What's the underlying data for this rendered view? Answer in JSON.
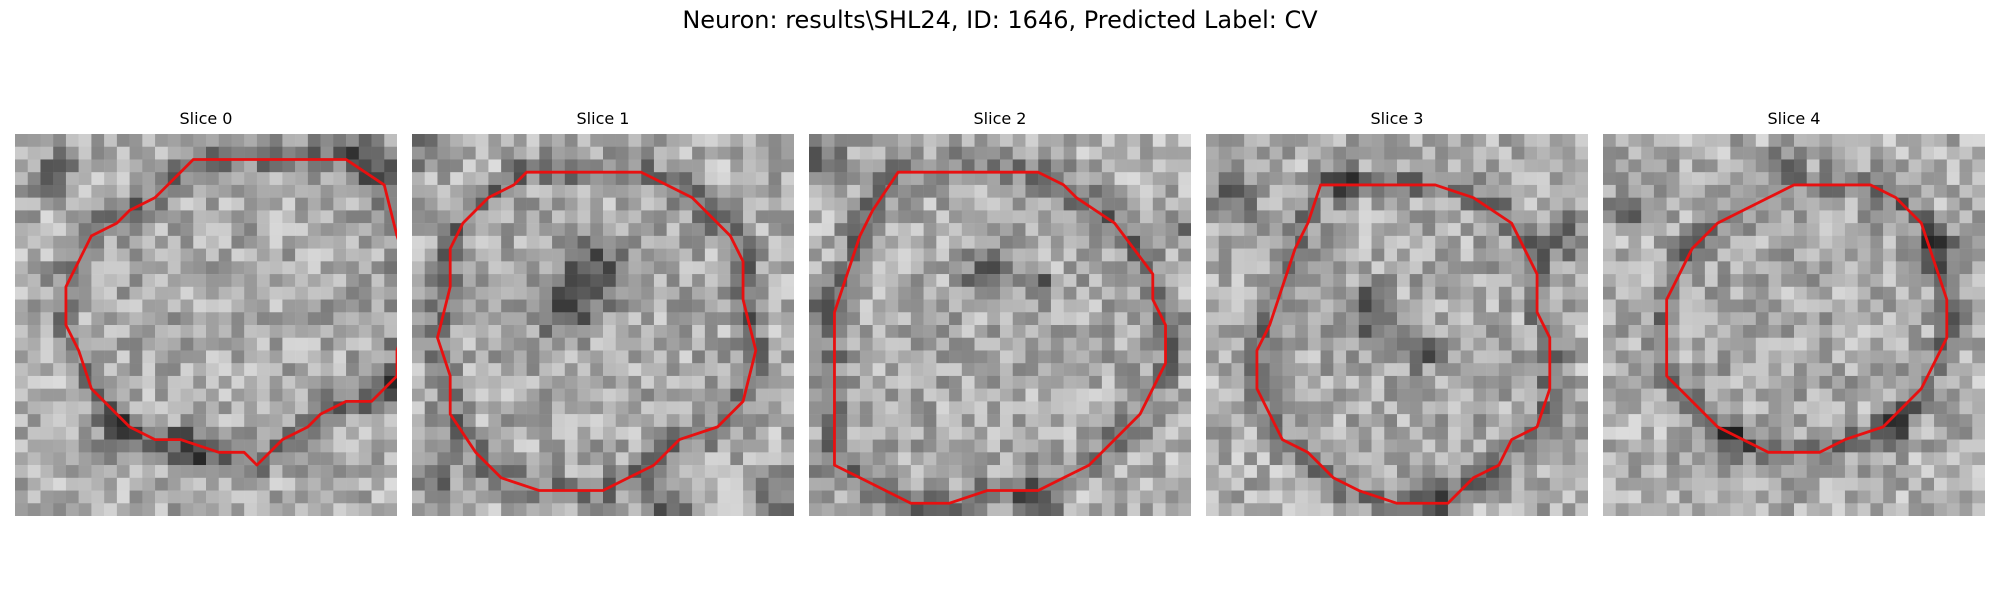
{
  "figure": {
    "title": "Neuron: results\\SHL24, ID: 1646, Predicted Label: CV",
    "contour_color": "#e81010",
    "panels": [
      {
        "title": "Slice 0",
        "seed": 11,
        "contour": [
          [
            14,
            2
          ],
          [
            26,
            2
          ],
          [
            29,
            4
          ],
          [
            30,
            8
          ],
          [
            31,
            11
          ],
          [
            31,
            14
          ],
          [
            30,
            17
          ],
          [
            30,
            19
          ],
          [
            28,
            21
          ],
          [
            26,
            21
          ],
          [
            24,
            22
          ],
          [
            23,
            23
          ],
          [
            21,
            24
          ],
          [
            20,
            25
          ],
          [
            19,
            26
          ],
          [
            18,
            25
          ],
          [
            16,
            25
          ],
          [
            13,
            24
          ],
          [
            11,
            24
          ],
          [
            9,
            23
          ],
          [
            8,
            22
          ],
          [
            6,
            20
          ],
          [
            5,
            17
          ],
          [
            4,
            15
          ],
          [
            4,
            12
          ],
          [
            5,
            10
          ],
          [
            6,
            8
          ],
          [
            8,
            7
          ],
          [
            9,
            6
          ],
          [
            11,
            5
          ],
          [
            12,
            4
          ],
          [
            13,
            3
          ]
        ],
        "dark_blobs": [
          [
            3,
            3,
            2.5
          ],
          [
            28,
            2,
            3
          ],
          [
            8,
            24,
            3
          ],
          [
            30,
            20,
            2.5
          ],
          [
            14,
            25,
            3
          ]
        ],
        "inner_dark": []
      },
      {
        "title": "Slice 1",
        "seed": 23,
        "contour": [
          [
            11,
            3
          ],
          [
            18,
            3
          ],
          [
            20,
            4
          ],
          [
            22,
            5
          ],
          [
            23,
            6
          ],
          [
            24,
            7
          ],
          [
            25,
            8
          ],
          [
            26,
            10
          ],
          [
            26,
            13
          ],
          [
            27,
            17
          ],
          [
            26,
            21
          ],
          [
            25,
            22
          ],
          [
            24,
            23
          ],
          [
            21,
            24
          ],
          [
            19,
            26
          ],
          [
            17,
            27
          ],
          [
            15,
            28
          ],
          [
            10,
            28
          ],
          [
            7,
            27
          ],
          [
            5,
            25
          ],
          [
            3,
            22
          ],
          [
            3,
            19
          ],
          [
            2,
            16
          ],
          [
            3,
            12
          ],
          [
            3,
            9
          ],
          [
            4,
            7
          ],
          [
            6,
            5
          ],
          [
            8,
            4
          ],
          [
            9,
            3
          ]
        ],
        "dark_blobs": [
          [
            1,
            1,
            2.5
          ],
          [
            29,
            28,
            3
          ],
          [
            20,
            29,
            3
          ],
          [
            2,
            27,
            2
          ]
        ],
        "inner_dark": [
          [
            14,
            11,
            4
          ],
          [
            12,
            14,
            3
          ]
        ]
      },
      {
        "title": "Slice 2",
        "seed": 37,
        "contour": [
          [
            7,
            3
          ],
          [
            18,
            3
          ],
          [
            20,
            4
          ],
          [
            21,
            5
          ],
          [
            24,
            7
          ],
          [
            27,
            11
          ],
          [
            27,
            13
          ],
          [
            28,
            15
          ],
          [
            28,
            18
          ],
          [
            27,
            20
          ],
          [
            26,
            22
          ],
          [
            24,
            24
          ],
          [
            22,
            26
          ],
          [
            20,
            27
          ],
          [
            18,
            28
          ],
          [
            14,
            28
          ],
          [
            11,
            29
          ],
          [
            8,
            29
          ],
          [
            6,
            28
          ],
          [
            4,
            27
          ],
          [
            2,
            26
          ],
          [
            2,
            22
          ],
          [
            2,
            18
          ],
          [
            2,
            14
          ],
          [
            3,
            11
          ],
          [
            4,
            8
          ],
          [
            5,
            6
          ]
        ],
        "dark_blobs": [
          [
            1,
            2,
            2.5
          ],
          [
            1,
            14,
            2.5
          ],
          [
            18,
            29,
            3
          ],
          [
            29,
            7,
            2
          ]
        ],
        "inner_dark": [
          [
            14,
            11,
            2.5
          ],
          [
            18,
            12,
            2
          ]
        ]
      },
      {
        "title": "Slice 3",
        "seed": 53,
        "contour": [
          [
            9,
            4
          ],
          [
            18,
            4
          ],
          [
            21,
            5
          ],
          [
            24,
            7
          ],
          [
            25,
            9
          ],
          [
            26,
            11
          ],
          [
            26,
            14
          ],
          [
            27,
            16
          ],
          [
            27,
            20
          ],
          [
            26,
            23
          ],
          [
            24,
            24
          ],
          [
            23,
            26
          ],
          [
            21,
            27
          ],
          [
            19,
            29
          ],
          [
            15,
            29
          ],
          [
            12,
            28
          ],
          [
            10,
            27
          ],
          [
            8,
            25
          ],
          [
            6,
            24
          ],
          [
            5,
            22
          ],
          [
            4,
            20
          ],
          [
            4,
            17
          ],
          [
            5,
            15
          ],
          [
            6,
            12
          ],
          [
            7,
            9
          ],
          [
            8,
            7
          ]
        ],
        "dark_blobs": [
          [
            2,
            5,
            3
          ],
          [
            28,
            8,
            3
          ],
          [
            11,
            4,
            2
          ],
          [
            18,
            28,
            2.5
          ]
        ],
        "inner_dark": [
          [
            13,
            14,
            3
          ],
          [
            17,
            17,
            2
          ]
        ]
      },
      {
        "title": "Slice 4",
        "seed": 71,
        "contour": [
          [
            15,
            4
          ],
          [
            21,
            4
          ],
          [
            23,
            5
          ],
          [
            25,
            7
          ],
          [
            26,
            10
          ],
          [
            27,
            13
          ],
          [
            27,
            16
          ],
          [
            26,
            18
          ],
          [
            25,
            20
          ],
          [
            23,
            22
          ],
          [
            22,
            23
          ],
          [
            19,
            24
          ],
          [
            17,
            25
          ],
          [
            13,
            25
          ],
          [
            11,
            24
          ],
          [
            9,
            23
          ],
          [
            7,
            21
          ],
          [
            5,
            19
          ],
          [
            5,
            16
          ],
          [
            5,
            13
          ],
          [
            6,
            11
          ],
          [
            7,
            9
          ],
          [
            9,
            7
          ],
          [
            11,
            6
          ],
          [
            13,
            5
          ]
        ],
        "dark_blobs": [
          [
            2,
            6,
            2.5
          ],
          [
            27,
            9,
            2.5
          ],
          [
            10,
            24,
            2.5
          ],
          [
            23,
            23,
            2.5
          ],
          [
            14,
            2,
            2
          ]
        ],
        "inner_dark": []
      }
    ]
  }
}
